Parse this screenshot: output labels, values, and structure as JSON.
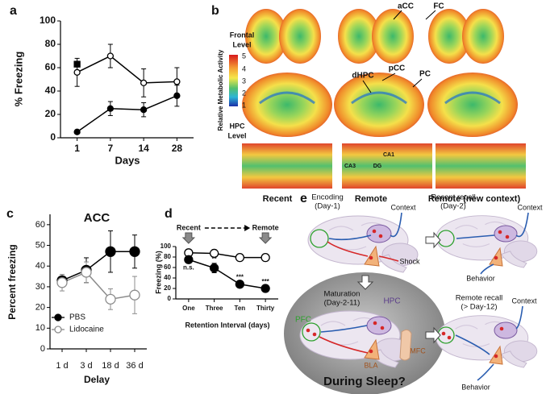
{
  "chart_data": [
    {
      "type": "line",
      "panel": "a",
      "ylabel": "% Freezing",
      "xlabel": "Days",
      "categories": [
        "1",
        "7",
        "14",
        "28"
      ],
      "ylim": [
        0,
        100
      ],
      "yticks": [
        0,
        20,
        40,
        60,
        80,
        100
      ],
      "series": [
        {
          "color": "#000000",
          "marker": "circle",
          "filled": false,
          "values": [
            56,
            70,
            47,
            48
          ],
          "errors": [
            12,
            10,
            12,
            12
          ]
        },
        {
          "color": "#000000",
          "marker": "circle",
          "filled": true,
          "values": [
            5,
            25,
            24,
            36
          ],
          "errors": [
            1,
            6,
            6,
            9
          ]
        },
        {
          "color": "#000000",
          "marker": "square",
          "filled": true,
          "values": [
            63,
            null,
            null,
            null
          ]
        }
      ]
    },
    {
      "type": "line",
      "panel": "c",
      "title": "ACC",
      "ylabel": "Percent freezing",
      "xlabel": "Delay",
      "categories": [
        "1 d",
        "3 d",
        "18 d",
        "36 d"
      ],
      "ylim": [
        0,
        65
      ],
      "yticks": [
        0,
        10,
        20,
        30,
        40,
        50,
        60
      ],
      "legend": "lower left",
      "series": [
        {
          "name": "PBS",
          "color": "#000000",
          "marker": "circle",
          "filled": true,
          "values": [
            33,
            38,
            47,
            47
          ],
          "errors": [
            3,
            6,
            10,
            8
          ]
        },
        {
          "name": "Lidocaine",
          "color": "#8c8c8c",
          "marker": "circle",
          "filled": false,
          "values": [
            32,
            37,
            24,
            26
          ],
          "errors": [
            4,
            5,
            5,
            9
          ]
        }
      ]
    },
    {
      "type": "line",
      "panel": "d",
      "ylabel": "Freezing (%)",
      "xlabel": "Retention Interval (days)",
      "categories": [
        "One",
        "Three",
        "Ten",
        "Thirty"
      ],
      "ylim": [
        0,
        100
      ],
      "yticks": [
        0,
        20,
        40,
        60,
        80,
        100
      ],
      "timeline": {
        "start": "Recent",
        "end": "Remote"
      },
      "series": [
        {
          "color": "#000000",
          "marker": "circle",
          "filled": false,
          "values": [
            88,
            87,
            79,
            79
          ],
          "errors": [
            4,
            4,
            5,
            5
          ]
        },
        {
          "color": "#000000",
          "marker": "circle",
          "filled": true,
          "values": [
            75,
            59,
            28,
            20
          ],
          "errors": [
            6,
            9,
            5,
            5
          ],
          "significance": [
            "n.s.",
            "**",
            "***",
            "***"
          ],
          "significance_position": [
            "below",
            "above",
            "above",
            "above"
          ]
        }
      ]
    }
  ],
  "panel_b": {
    "panel": "b",
    "frontal_label": [
      "Frontal",
      "Level"
    ],
    "hpc_label": [
      "HPC",
      "Level"
    ],
    "colorbar_title": "Relative Metabolic Activity",
    "colorbar_ticks": [
      5,
      4,
      3,
      2,
      1
    ],
    "regions": [
      "aCC",
      "FC",
      "dHPC",
      "pCC",
      "PC",
      "CA1",
      "CA3",
      "DG"
    ],
    "columns": [
      "Recent",
      "Remote",
      "Remote (new context)"
    ]
  },
  "panel_e": {
    "panel": "e",
    "encoding": [
      "Encoding",
      "(Day-1)"
    ],
    "recent_recall": [
      "Recent recall",
      "(Day-2)"
    ],
    "maturation": [
      "Maturation",
      "(Day-2-11)"
    ],
    "remote_recall": [
      "Remote recall",
      "(> Day-12)"
    ],
    "context": [
      "Context",
      "Context",
      "Context"
    ],
    "shock": "Shock",
    "behavior": [
      "Behavior",
      "Behavior"
    ],
    "regions": [
      "HPC",
      "PFC",
      "BLA",
      "MFC"
    ],
    "question": "During Sleep?"
  }
}
